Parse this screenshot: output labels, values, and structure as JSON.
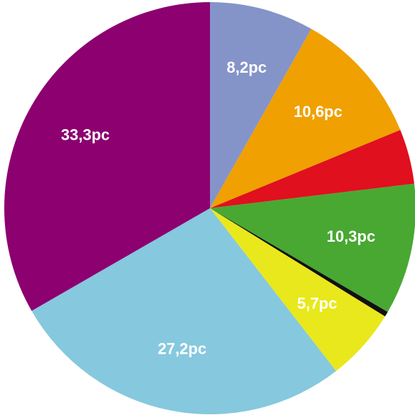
{
  "chart_data": {
    "type": "pie",
    "values": [
      8.2,
      10.6,
      4.3,
      10.3,
      0.4,
      5.7,
      27.2,
      33.3
    ],
    "value_labels": [
      "8,2pc",
      "10,6pc",
      null,
      "10,3pc",
      null,
      "5,7pc",
      "27,2pc",
      "33,3pc"
    ],
    "colors": [
      "#8594c8",
      "#f0a000",
      "#e0101e",
      "#48a832",
      "#111111",
      "#e8e81c",
      "#86c8de",
      "#8c0070"
    ]
  }
}
